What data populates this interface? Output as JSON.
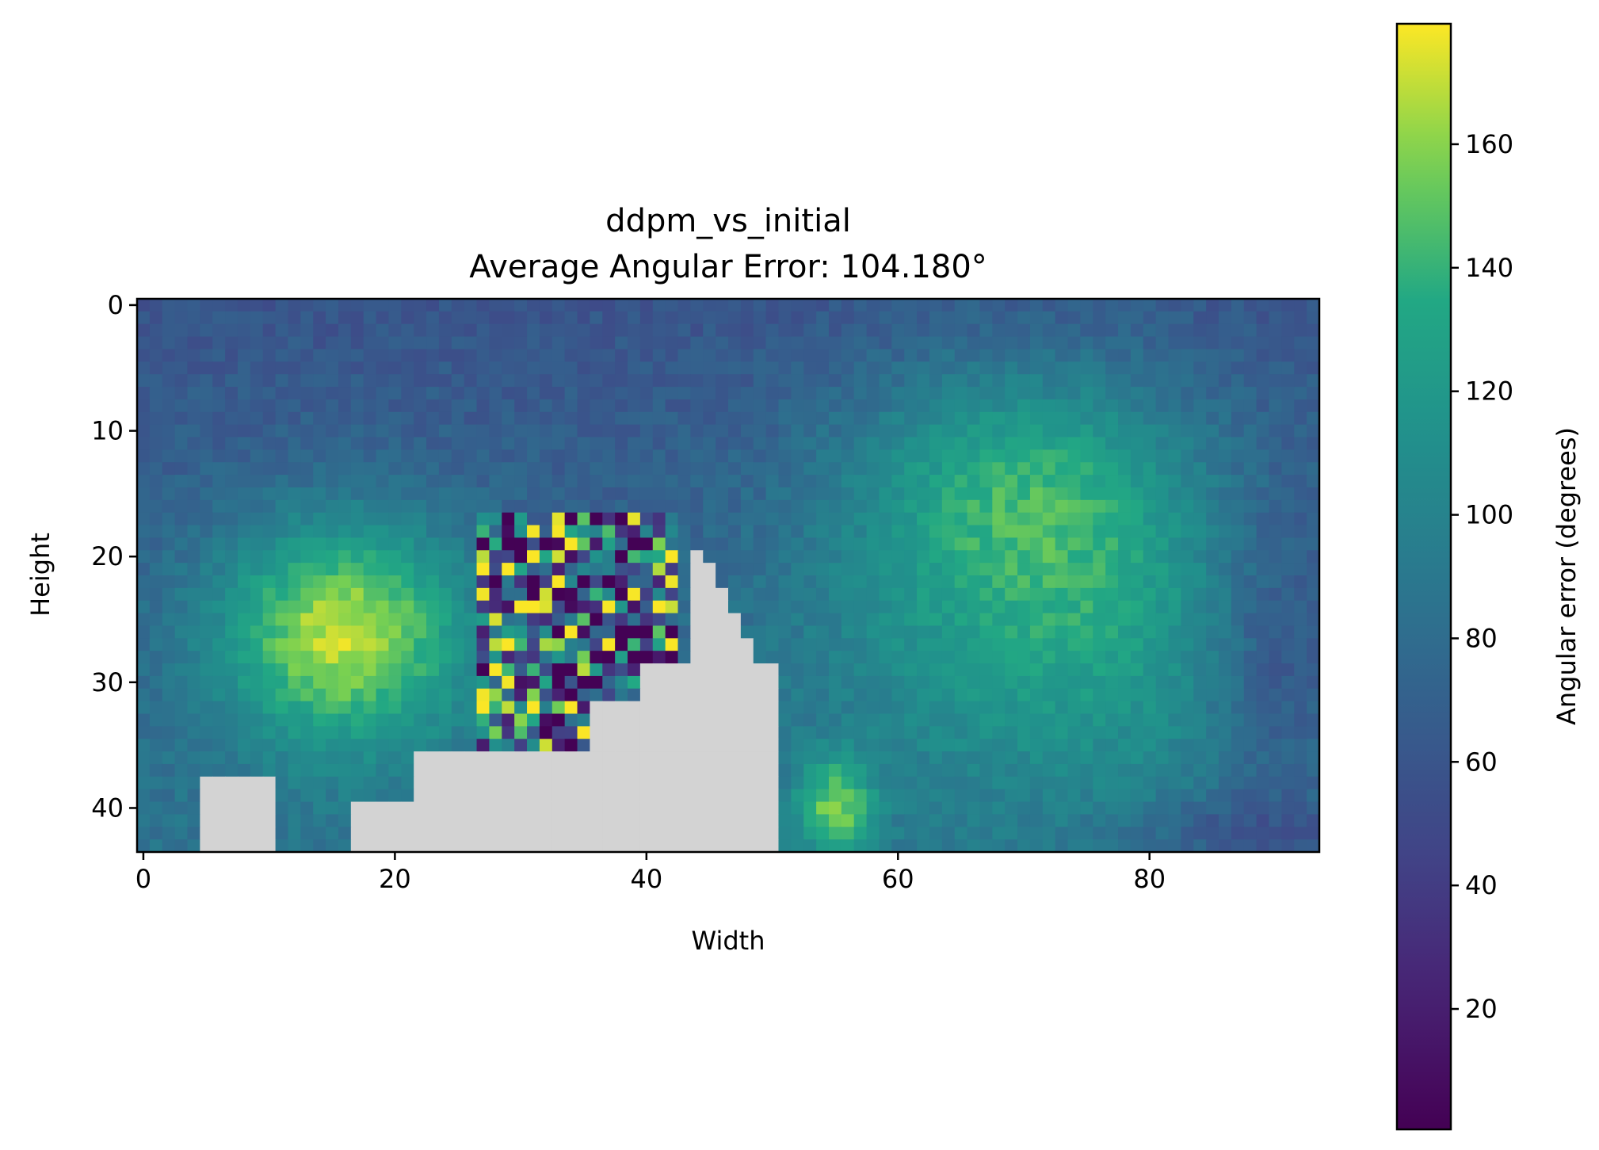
{
  "chart_data": {
    "type": "heatmap",
    "title": [
      "ddpm_vs_initial",
      "Average Angular Error: 104.180°"
    ],
    "xlabel": "Width",
    "ylabel": "Height",
    "grid": false,
    "width_cells": 94,
    "height_cells": 44,
    "xlim": [
      -0.5,
      93.5
    ],
    "ylim": [
      43.5,
      -0.5
    ],
    "xticks": [
      0,
      20,
      40,
      60,
      80
    ],
    "yticks": [
      0,
      10,
      20,
      30,
      40
    ],
    "colormap": "viridis",
    "masked_color": "#d3d3d3",
    "colorbar": {
      "label": "Angular error (degrees)",
      "range": [
        0.5,
        179.5
      ],
      "ticks": [
        20,
        40,
        60,
        80,
        100,
        120,
        140,
        160
      ]
    },
    "average_angular_error_deg": 104.18
  }
}
